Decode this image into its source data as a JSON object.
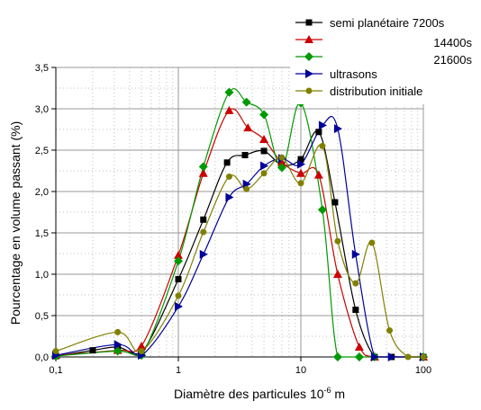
{
  "chart_data": {
    "type": "line",
    "x_scale": "log",
    "xlim": [
      0.1,
      100
    ],
    "ylim": [
      0,
      3.5
    ],
    "xlabel": "Diamètre des particules 10",
    "xlabel_exponent": "-6",
    "xlabel_unit": " m",
    "ylabel": "Pourcentage en volume passant (%)",
    "x_tick_labels": [
      {
        "value": 0.1,
        "label": "0,1"
      },
      {
        "value": 1,
        "label": "1"
      },
      {
        "value": 10,
        "label": "10"
      },
      {
        "value": 100,
        "label": "100"
      }
    ],
    "y_tick_labels": [
      {
        "value": 0,
        "label": "0,0"
      },
      {
        "value": 0.5,
        "label": "0,5"
      },
      {
        "value": 1,
        "label": "1,0"
      },
      {
        "value": 1.5,
        "label": "1,5"
      },
      {
        "value": 2,
        "label": "2,0"
      },
      {
        "value": 2.5,
        "label": "2,5"
      },
      {
        "value": 3,
        "label": "3,0"
      },
      {
        "value": 3.5,
        "label": "3,5"
      }
    ],
    "grid": true,
    "legend_position": "top-right",
    "series": [
      {
        "name": "semi planétaire  7200s",
        "color": "#000000",
        "marker": "square",
        "x": [
          0.1,
          0.2,
          0.32,
          0.5,
          1.0,
          1.6,
          2.5,
          3.5,
          5.0,
          7.0,
          10.0,
          14.0,
          19.0,
          28.0,
          40.0,
          55.0,
          100.0
        ],
        "y": [
          0.01,
          0.08,
          0.12,
          0.05,
          0.94,
          1.66,
          2.35,
          2.44,
          2.49,
          2.32,
          2.39,
          2.72,
          1.87,
          0.57,
          0.0,
          0.0,
          0.0
        ]
      },
      {
        "name": "14400s",
        "color": "#cc0000",
        "marker": "triangle-up",
        "x": [
          0.1,
          0.32,
          0.5,
          1.0,
          1.6,
          2.6,
          3.7,
          5.0,
          7.0,
          10.0,
          14.0,
          20.0,
          30.0,
          40.0,
          100.0
        ],
        "y": [
          0.02,
          0.08,
          0.13,
          1.23,
          2.22,
          2.98,
          2.77,
          2.63,
          2.35,
          2.22,
          2.2,
          1.0,
          0.12,
          0.0,
          0.0
        ]
      },
      {
        "name": "21600s",
        "color": "#009900",
        "marker": "diamond",
        "x": [
          0.1,
          0.32,
          0.5,
          1.0,
          1.6,
          2.6,
          3.6,
          5.0,
          7.0,
          10.0,
          15.0,
          20.0,
          30.0,
          40.0,
          100.0
        ],
        "y": [
          0.01,
          0.07,
          0.02,
          1.16,
          2.3,
          3.2,
          3.08,
          2.93,
          2.29,
          3.07,
          1.78,
          0.0,
          0.0,
          0.0,
          0.0
        ]
      },
      {
        "name": "ultrasons",
        "color": "#000099",
        "marker": "triangle-right",
        "x": [
          0.1,
          0.32,
          0.5,
          1.0,
          1.6,
          2.6,
          3.6,
          5.0,
          7.0,
          10.0,
          15.0,
          20.0,
          28.0,
          40.0,
          55.0,
          100.0
        ],
        "y": [
          0.02,
          0.15,
          0.02,
          0.61,
          1.24,
          1.93,
          2.09,
          2.31,
          2.4,
          2.33,
          2.8,
          2.76,
          1.24,
          0.0,
          0.0,
          0.0
        ]
      },
      {
        "name": "distribution initiale",
        "color": "#808000",
        "marker": "circle",
        "x": [
          0.1,
          0.32,
          0.5,
          1.0,
          1.6,
          2.6,
          3.6,
          5.0,
          7.0,
          10.0,
          15.0,
          20.0,
          28.0,
          38.0,
          53.0,
          75.0,
          100.0
        ],
        "y": [
          0.07,
          0.3,
          0.07,
          0.74,
          1.51,
          2.18,
          2.03,
          2.22,
          2.41,
          2.1,
          2.55,
          1.4,
          0.89,
          1.38,
          0.32,
          0.0,
          0.0
        ]
      }
    ]
  }
}
